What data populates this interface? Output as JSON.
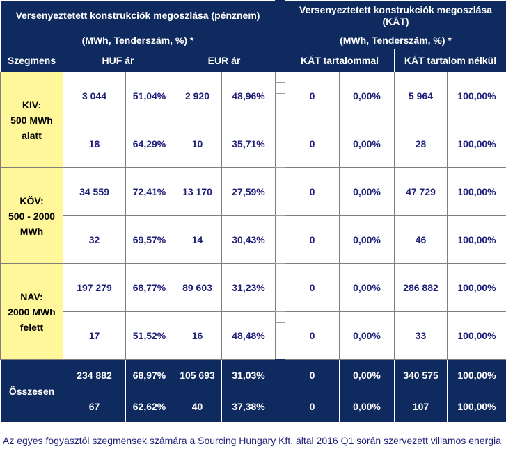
{
  "left": {
    "title": "Versenyeztetett konstrukciók megoszlása (pénznem)",
    "subtitle": "(MWh, Tenderszám, %) *",
    "headers": [
      "Szegmens",
      "HUF ár",
      "EUR ár"
    ]
  },
  "right": {
    "title_line1": "Versenyeztetett konstrukciók megoszlása",
    "title_line2": "(KÁT)",
    "subtitle": "(MWh, Tenderszám, %) *",
    "headers": [
      "KÁT tartalommal",
      "KÁT tartalom nélkül"
    ]
  },
  "segments": [
    {
      "line1": "KIV:",
      "line2": "500 MWh",
      "line3": "alatt"
    },
    {
      "line1": "KÖV:",
      "line2": "500 - 2000",
      "line3": "MWh"
    },
    {
      "line1": "NAV:",
      "line2": "2000 MWh",
      "line3": "felett"
    }
  ],
  "rows": [
    {
      "huf": "3 044",
      "huf_pct": "51,04%",
      "eur": "2 920",
      "eur_pct": "48,96%",
      "kat": "0",
      "kat_pct": "0,00%",
      "nokat": "5 964",
      "nokat_pct": "100,00%"
    },
    {
      "huf": "18",
      "huf_pct": "64,29%",
      "eur": "10",
      "eur_pct": "35,71%",
      "kat": "0",
      "kat_pct": "0,00%",
      "nokat": "28",
      "nokat_pct": "100,00%"
    },
    {
      "huf": "34 559",
      "huf_pct": "72,41%",
      "eur": "13 170",
      "eur_pct": "27,59%",
      "kat": "0",
      "kat_pct": "0,00%",
      "nokat": "47 729",
      "nokat_pct": "100,00%"
    },
    {
      "huf": "32",
      "huf_pct": "69,57%",
      "eur": "14",
      "eur_pct": "30,43%",
      "kat": "0",
      "kat_pct": "0,00%",
      "nokat": "46",
      "nokat_pct": "100,00%"
    },
    {
      "huf": "197 279",
      "huf_pct": "68,77%",
      "eur": "89 603",
      "eur_pct": "31,23%",
      "kat": "0",
      "kat_pct": "0,00%",
      "nokat": "286 882",
      "nokat_pct": "100,00%"
    },
    {
      "huf": "17",
      "huf_pct": "51,52%",
      "eur": "16",
      "eur_pct": "48,48%",
      "kat": "0",
      "kat_pct": "0,00%",
      "nokat": "33",
      "nokat_pct": "100,00%"
    }
  ],
  "total": {
    "label": "Összesen",
    "rows": [
      {
        "huf": "234 882",
        "huf_pct": "68,97%",
        "eur": "105 693",
        "eur_pct": "31,03%",
        "kat": "0",
        "kat_pct": "0,00%",
        "nokat": "340 575",
        "nokat_pct": "100,00%"
      },
      {
        "huf": "67",
        "huf_pct": "62,62%",
        "eur": "40",
        "eur_pct": "37,38%",
        "kat": "0",
        "kat_pct": "0,00%",
        "nokat": "107",
        "nokat_pct": "100,00%"
      }
    ]
  },
  "caption": "Az egyes fogyasztói szegmensek számára a Sourcing Hungary Kft. által 2016 Q1 során szervezett villamos energia"
}
